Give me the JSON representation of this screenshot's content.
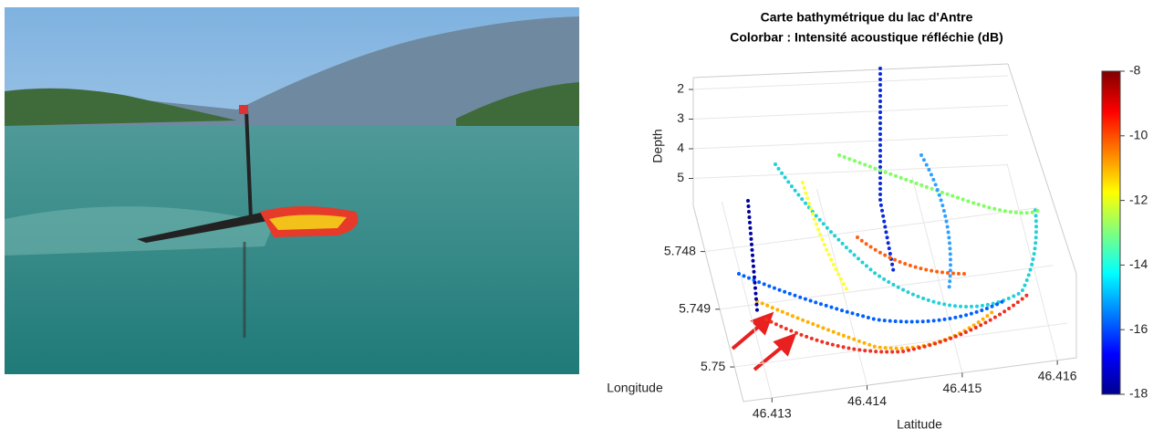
{
  "chart_data": {
    "type": "scatter3d",
    "title": "Carte bathymétrique du lac d'Antre",
    "subtitle": "Colorbar : Intensité acoustique réfléchie (dB)",
    "xlabel": "Latitude",
    "ylabel": "Longitude",
    "zlabel": "Depth",
    "xlim": [
      46.4127,
      46.4162
    ],
    "xticks": [
      46.413,
      46.414,
      46.415,
      46.416
    ],
    "ylim": [
      5.7472,
      5.7506
    ],
    "yticks": [
      5.748,
      5.749,
      5.75
    ],
    "zlim": [
      1.6,
      5.6
    ],
    "zticks": [
      2,
      3,
      4,
      5
    ],
    "clim": [
      -18,
      -8
    ],
    "cticks": [
      -8,
      -10,
      -12,
      -14,
      -16,
      -18
    ],
    "colormap": "jet",
    "grid": true
  }
}
